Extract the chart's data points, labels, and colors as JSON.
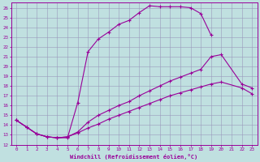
{
  "xlabel": "Windchill (Refroidissement éolien,°C)",
  "bg_color": "#c0e0e0",
  "line_color": "#990099",
  "grid_color": "#9999bb",
  "xlim": [
    -0.5,
    23.5
  ],
  "ylim": [
    12,
    26.5
  ],
  "xticks": [
    0,
    1,
    2,
    3,
    4,
    5,
    6,
    7,
    8,
    9,
    10,
    11,
    12,
    13,
    14,
    15,
    16,
    17,
    18,
    19,
    20,
    21,
    22,
    23
  ],
  "yticks": [
    12,
    13,
    14,
    15,
    16,
    17,
    18,
    19,
    20,
    21,
    22,
    23,
    24,
    25,
    26
  ],
  "curve1_x": [
    0,
    1,
    2,
    3,
    4,
    5,
    6,
    7,
    8,
    9,
    10,
    11,
    12,
    13,
    14,
    15,
    16,
    17,
    18,
    19
  ],
  "curve1_y": [
    14.5,
    13.8,
    13.1,
    12.8,
    12.7,
    12.7,
    16.3,
    21.5,
    22.8,
    23.5,
    24.3,
    24.7,
    25.5,
    26.2,
    26.1,
    26.1,
    26.1,
    26.0,
    25.4,
    23.2
  ],
  "curve2_x": [
    0,
    1,
    2,
    3,
    4,
    5,
    6,
    7,
    8,
    9,
    10,
    11,
    12,
    13,
    14,
    15,
    16,
    17,
    18,
    19,
    20,
    22,
    23
  ],
  "curve2_y": [
    14.5,
    13.8,
    13.1,
    12.8,
    12.7,
    12.8,
    13.2,
    13.7,
    14.1,
    14.6,
    15.0,
    15.4,
    15.8,
    16.2,
    16.6,
    17.0,
    17.3,
    17.6,
    17.9,
    18.2,
    18.4,
    17.8,
    17.2
  ],
  "curve3_x": [
    0,
    1,
    2,
    3,
    4,
    5,
    6,
    7,
    8,
    9,
    10,
    11,
    12,
    13,
    14,
    15,
    16,
    17,
    18,
    19,
    20,
    22,
    23
  ],
  "curve3_y": [
    14.5,
    13.8,
    13.1,
    12.8,
    12.7,
    12.8,
    13.3,
    14.3,
    15.0,
    15.5,
    16.0,
    16.4,
    17.0,
    17.5,
    18.0,
    18.5,
    18.9,
    19.3,
    19.7,
    21.0,
    21.2,
    18.2,
    17.8
  ]
}
